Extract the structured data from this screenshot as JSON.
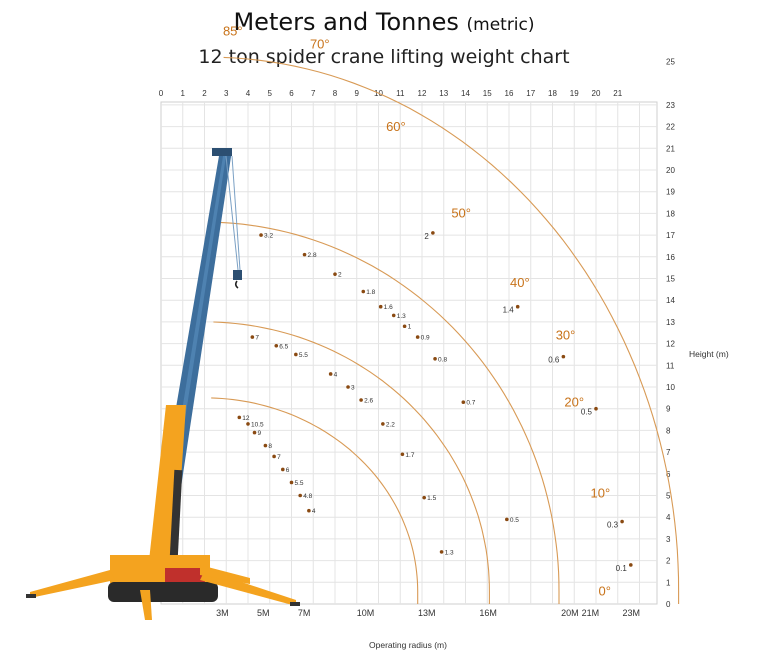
{
  "header": {
    "title": "Meters and Tonnes",
    "title_suffix": "(metric)",
    "subtitle": "12 ton spider crane lifting weight chart"
  },
  "chart_data": {
    "type": "scatter",
    "title": "Meters and Tonnes (metric)",
    "subtitle": "12 ton spider crane lifting weight chart",
    "xlabel": "Operating radius (m)",
    "ylabel": "Height (m)",
    "xlim": [
      0,
      22
    ],
    "ylim": [
      0,
      26
    ],
    "grid": true,
    "colors": {
      "arc": "#d89a55",
      "angle_text": "#c8731a",
      "point": "#8a4a12",
      "grid": "#e4e4e4"
    },
    "top_ticks": [
      "0",
      "1",
      "2",
      "3",
      "4",
      "5",
      "6",
      "7",
      "8",
      "9",
      "10",
      "11",
      "12",
      "13",
      "14",
      "15",
      "16",
      "17",
      "18",
      "19",
      "20",
      "21"
    ],
    "right_ticks": [
      "0",
      "1",
      "2",
      "3",
      "4",
      "5",
      "6",
      "7",
      "8",
      "9",
      "10",
      "11",
      "12",
      "13",
      "14",
      "15",
      "16",
      "17",
      "18",
      "19",
      "20",
      "21",
      "22",
      "23",
      "25"
    ],
    "bottom_ticks": [
      "3M",
      "5M",
      "7M",
      "10M",
      "13M",
      "16M",
      "20M",
      "21M",
      "23M"
    ],
    "angles": [
      {
        "label": "85°",
        "x": 3.3,
        "y": 26.2
      },
      {
        "label": "70°",
        "x": 7.3,
        "y": 25.6
      },
      {
        "label": "60°",
        "x": 10.8,
        "y": 21.8
      },
      {
        "label": "50°",
        "x": 13.8,
        "y": 17.8
      },
      {
        "label": "40°",
        "x": 16.5,
        "y": 14.6
      },
      {
        "label": "30°",
        "x": 18.6,
        "y": 12.2
      },
      {
        "label": "20°",
        "x": 19.0,
        "y": 9.1
      },
      {
        "label": "10°",
        "x": 20.2,
        "y": 4.9
      },
      {
        "label": "0°",
        "x": 20.4,
        "y": 0.4
      }
    ],
    "series": [
      {
        "boom": "shortest",
        "points": [
          {
            "x": 3.6,
            "y": 8.6,
            "label": "12"
          },
          {
            "x": 4.0,
            "y": 8.3,
            "label": "10.5"
          },
          {
            "x": 4.3,
            "y": 7.9,
            "label": "9"
          },
          {
            "x": 4.8,
            "y": 7.3,
            "label": "8"
          },
          {
            "x": 5.2,
            "y": 6.8,
            "label": "7"
          },
          {
            "x": 5.6,
            "y": 6.2,
            "label": "6"
          },
          {
            "x": 6.0,
            "y": 5.6,
            "label": "5.5"
          },
          {
            "x": 6.4,
            "y": 5.0,
            "label": "4.8"
          },
          {
            "x": 6.8,
            "y": 4.3,
            "label": "4"
          }
        ]
      },
      {
        "boom": "second",
        "points": [
          {
            "x": 4.2,
            "y": 12.3,
            "label": "7"
          },
          {
            "x": 5.3,
            "y": 11.9,
            "label": "6.5"
          },
          {
            "x": 6.2,
            "y": 11.5,
            "label": "5.5"
          },
          {
            "x": 7.8,
            "y": 10.6,
            "label": "4"
          },
          {
            "x": 8.6,
            "y": 10.0,
            "label": "3"
          },
          {
            "x": 9.2,
            "y": 9.4,
            "label": "2.6"
          },
          {
            "x": 10.2,
            "y": 8.3,
            "label": "2.2"
          },
          {
            "x": 11.1,
            "y": 6.9,
            "label": "1.7"
          },
          {
            "x": 12.1,
            "y": 4.9,
            "label": "1.5"
          },
          {
            "x": 12.9,
            "y": 2.4,
            "label": "1.3"
          }
        ]
      },
      {
        "boom": "third",
        "points": [
          {
            "x": 4.6,
            "y": 17.0,
            "label": "3.2"
          },
          {
            "x": 6.6,
            "y": 16.1,
            "label": "2.8"
          },
          {
            "x": 8.0,
            "y": 15.2,
            "label": "2"
          },
          {
            "x": 9.3,
            "y": 14.4,
            "label": "1.8"
          },
          {
            "x": 10.1,
            "y": 13.7,
            "label": "1.6"
          },
          {
            "x": 10.7,
            "y": 13.3,
            "label": "1.3"
          },
          {
            "x": 11.2,
            "y": 12.8,
            "label": "1"
          },
          {
            "x": 11.8,
            "y": 12.3,
            "label": "0.9"
          },
          {
            "x": 12.6,
            "y": 11.3,
            "label": "0.8"
          },
          {
            "x": 13.9,
            "y": 9.3,
            "label": "0.7"
          },
          {
            "x": 15.9,
            "y": 3.9,
            "label": "0.5"
          }
        ]
      },
      {
        "boom": "longest",
        "points": [
          {
            "x": 12.5,
            "y": 17.1,
            "label": "2"
          },
          {
            "x": 16.4,
            "y": 13.7,
            "label": "1.4"
          },
          {
            "x": 18.5,
            "y": 11.4,
            "label": "0.6"
          },
          {
            "x": 20.0,
            "y": 9.0,
            "label": "0.5"
          },
          {
            "x": 21.2,
            "y": 3.8,
            "label": "0.3"
          },
          {
            "x": 21.6,
            "y": 1.8,
            "label": "0.1"
          }
        ]
      }
    ]
  }
}
